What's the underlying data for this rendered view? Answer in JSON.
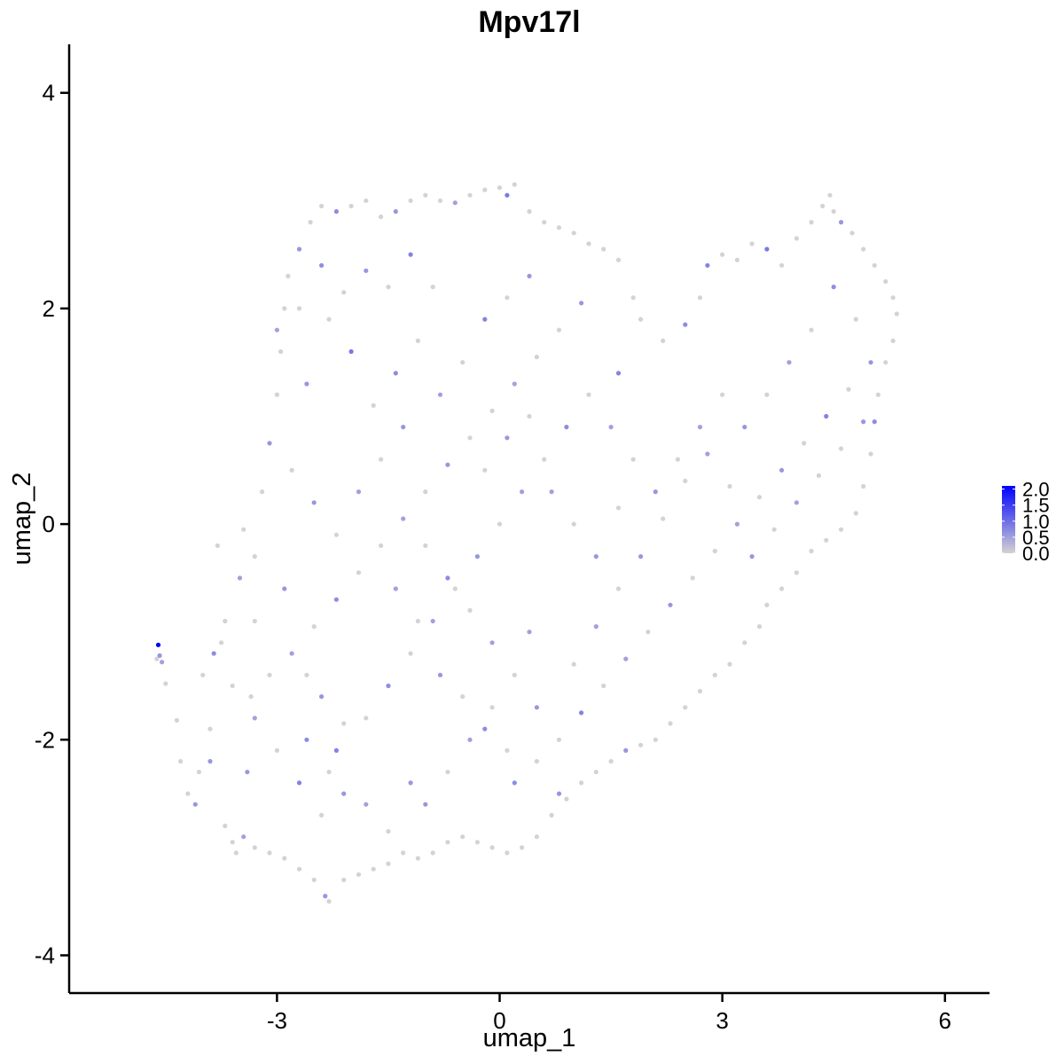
{
  "chart_data": {
    "type": "scatter",
    "title": "Mpv17l",
    "xlabel": "umap_1",
    "ylabel": "umap_2",
    "xlim": [
      -5.8,
      6.6
    ],
    "ylim": [
      -4.35,
      4.45
    ],
    "x_ticks": [
      -3,
      0,
      3,
      6
    ],
    "y_ticks": [
      -4,
      -2,
      0,
      2,
      4
    ],
    "x_tick_labels": [
      "-3",
      "0",
      "3",
      "6"
    ],
    "y_tick_labels": [
      "-4",
      "-2",
      "0",
      "2",
      "4"
    ],
    "grid": false,
    "legend": {
      "placement": "right",
      "type": "colorbar",
      "min": 0.0,
      "max": 2.1,
      "tick_values": [
        0.0,
        0.5,
        1.0,
        1.5,
        2.0
      ],
      "tick_labels": [
        "0.0",
        "0.5",
        "1.0",
        "1.5",
        "2.0"
      ],
      "low_color": "#d3d3d3",
      "high_color": "#0000ff"
    },
    "colors": {
      "low": "#d3d3d3",
      "high": "#0000ff"
    },
    "points": [
      [
        -4.6,
        -1.12,
        2.1
      ],
      [
        -4.58,
        -1.22,
        0.6
      ],
      [
        -4.62,
        -1.25,
        0
      ],
      [
        -4.55,
        -1.28,
        0.5
      ],
      [
        -4.5,
        -1.48,
        0
      ],
      [
        -4.35,
        -1.82,
        0
      ],
      [
        -4.3,
        -2.2,
        0
      ],
      [
        -4.2,
        -2.5,
        0
      ],
      [
        -4.1,
        -2.6,
        0.6
      ],
      [
        -4.05,
        -2.3,
        0
      ],
      [
        -3.9,
        -1.9,
        0
      ],
      [
        -3.85,
        -1.2,
        0.7
      ],
      [
        -3.75,
        -1.1,
        0
      ],
      [
        -3.7,
        -2.8,
        0
      ],
      [
        -3.6,
        -2.95,
        0
      ],
      [
        -3.55,
        -3.05,
        0
      ],
      [
        -3.45,
        -2.9,
        0.5
      ],
      [
        -3.4,
        -2.3,
        0.6
      ],
      [
        -3.35,
        -1.6,
        0
      ],
      [
        -3.3,
        -0.9,
        0
      ],
      [
        -3.3,
        -0.3,
        0
      ],
      [
        -3.45,
        -0.05,
        0
      ],
      [
        -3.2,
        0.3,
        0
      ],
      [
        -3.1,
        0.75,
        0.6
      ],
      [
        -3.0,
        1.2,
        0
      ],
      [
        -2.95,
        1.6,
        0
      ],
      [
        -2.9,
        2.0,
        0
      ],
      [
        -2.85,
        2.3,
        0
      ],
      [
        -2.7,
        2.55,
        0.6
      ],
      [
        -2.55,
        2.8,
        0
      ],
      [
        -2.4,
        2.95,
        0
      ],
      [
        -2.2,
        2.9,
        0.7
      ],
      [
        -2.0,
        2.95,
        0
      ],
      [
        -1.8,
        3.0,
        0
      ],
      [
        -1.6,
        2.85,
        0
      ],
      [
        -1.4,
        2.9,
        0.6
      ],
      [
        -1.2,
        3.0,
        0
      ],
      [
        -1.0,
        3.05,
        0
      ],
      [
        -0.8,
        3.0,
        0
      ],
      [
        -0.6,
        2.98,
        0.5
      ],
      [
        -0.4,
        3.05,
        0
      ],
      [
        -0.2,
        3.1,
        0
      ],
      [
        0.0,
        3.12,
        0
      ],
      [
        0.1,
        3.05,
        0.9
      ],
      [
        0.2,
        3.15,
        0
      ],
      [
        0.4,
        2.9,
        0
      ],
      [
        0.6,
        2.8,
        0
      ],
      [
        0.8,
        2.75,
        0
      ],
      [
        1.0,
        2.7,
        0
      ],
      [
        1.2,
        2.6,
        0
      ],
      [
        1.4,
        2.55,
        0
      ],
      [
        1.6,
        2.45,
        0
      ],
      [
        1.8,
        2.1,
        0
      ],
      [
        1.6,
        1.4,
        0.8
      ],
      [
        1.9,
        1.9,
        0
      ],
      [
        2.2,
        1.7,
        0
      ],
      [
        2.5,
        1.85,
        0.7
      ],
      [
        2.7,
        2.1,
        0
      ],
      [
        2.8,
        2.4,
        0.8
      ],
      [
        3.0,
        2.5,
        0
      ],
      [
        3.2,
        2.45,
        0
      ],
      [
        3.4,
        2.6,
        0
      ],
      [
        3.6,
        2.55,
        0.9
      ],
      [
        3.8,
        2.4,
        0
      ],
      [
        4.0,
        2.65,
        0
      ],
      [
        4.2,
        2.8,
        0
      ],
      [
        4.35,
        2.95,
        0
      ],
      [
        4.45,
        3.05,
        0
      ],
      [
        4.5,
        2.9,
        0
      ],
      [
        4.6,
        2.8,
        0.6
      ],
      [
        4.75,
        2.7,
        0
      ],
      [
        4.9,
        2.55,
        0
      ],
      [
        5.05,
        2.4,
        0
      ],
      [
        5.2,
        2.25,
        0
      ],
      [
        5.3,
        2.1,
        0
      ],
      [
        5.35,
        1.95,
        0
      ],
      [
        5.3,
        1.7,
        0
      ],
      [
        5.2,
        1.5,
        0
      ],
      [
        5.1,
        1.2,
        0
      ],
      [
        5.05,
        0.95,
        0.7
      ],
      [
        5.0,
        0.65,
        0
      ],
      [
        4.9,
        0.35,
        0
      ],
      [
        4.8,
        0.1,
        0
      ],
      [
        4.6,
        -0.05,
        0
      ],
      [
        4.4,
        -0.15,
        0
      ],
      [
        4.2,
        -0.25,
        0
      ],
      [
        4.0,
        -0.45,
        0
      ],
      [
        3.8,
        -0.6,
        0
      ],
      [
        3.6,
        -0.75,
        0
      ],
      [
        3.5,
        -0.95,
        0
      ],
      [
        3.3,
        -1.1,
        0
      ],
      [
        3.1,
        -1.3,
        0
      ],
      [
        2.9,
        -1.4,
        0
      ],
      [
        2.7,
        -1.55,
        0
      ],
      [
        2.5,
        -1.7,
        0
      ],
      [
        2.3,
        -1.85,
        0
      ],
      [
        2.1,
        -2.0,
        0
      ],
      [
        1.9,
        -2.05,
        0
      ],
      [
        1.7,
        -2.1,
        0.6
      ],
      [
        1.5,
        -2.2,
        0
      ],
      [
        1.3,
        -2.3,
        0
      ],
      [
        1.1,
        -2.4,
        0
      ],
      [
        0.9,
        -2.55,
        0
      ],
      [
        0.7,
        -2.7,
        0
      ],
      [
        0.5,
        -2.9,
        0
      ],
      [
        0.3,
        -3.0,
        0
      ],
      [
        0.1,
        -3.05,
        0
      ],
      [
        -0.1,
        -3.0,
        0
      ],
      [
        -0.3,
        -2.95,
        0
      ],
      [
        -0.5,
        -2.9,
        0
      ],
      [
        -0.7,
        -2.95,
        0
      ],
      [
        -0.9,
        -3.05,
        0
      ],
      [
        -1.1,
        -3.1,
        0
      ],
      [
        -1.3,
        -3.05,
        0
      ],
      [
        -1.5,
        -3.15,
        0
      ],
      [
        -1.7,
        -3.2,
        0
      ],
      [
        -1.9,
        -3.25,
        0
      ],
      [
        -2.1,
        -3.3,
        0
      ],
      [
        -2.3,
        -3.5,
        0
      ],
      [
        -2.35,
        -3.45,
        0.6
      ],
      [
        -2.5,
        -3.3,
        0
      ],
      [
        -2.7,
        -3.2,
        0
      ],
      [
        -2.9,
        -3.1,
        0
      ],
      [
        -3.1,
        -3.05,
        0
      ],
      [
        -3.3,
        -3.0,
        0
      ],
      [
        -2.2,
        -2.1,
        0.8
      ],
      [
        -2.1,
        -1.85,
        0
      ],
      [
        -2.4,
        -1.6,
        0.6
      ],
      [
        -2.6,
        -1.4,
        0
      ],
      [
        -2.8,
        -1.2,
        0.5
      ],
      [
        -2.5,
        -0.95,
        0
      ],
      [
        -2.2,
        -0.7,
        0.7
      ],
      [
        -1.9,
        -0.45,
        0
      ],
      [
        -1.6,
        -0.2,
        0
      ],
      [
        -1.3,
        0.05,
        0.5
      ],
      [
        -1.0,
        0.3,
        0
      ],
      [
        -0.7,
        0.55,
        0.6
      ],
      [
        -0.4,
        0.8,
        0
      ],
      [
        -0.1,
        1.05,
        0
      ],
      [
        0.2,
        1.3,
        0.5
      ],
      [
        0.5,
        1.55,
        0
      ],
      [
        0.8,
        1.8,
        0
      ],
      [
        1.1,
        2.05,
        0.6
      ],
      [
        -2.0,
        1.6,
        0.9
      ],
      [
        -2.3,
        1.9,
        0
      ],
      [
        -2.6,
        1.3,
        0.6
      ],
      [
        -1.7,
        1.1,
        0
      ],
      [
        -1.4,
        1.4,
        0.7
      ],
      [
        -1.1,
        1.7,
        0
      ],
      [
        -0.8,
        1.2,
        0.5
      ],
      [
        -0.5,
        1.5,
        0
      ],
      [
        -0.2,
        1.9,
        0.8
      ],
      [
        0.1,
        2.1,
        0
      ],
      [
        0.4,
        2.3,
        0.6
      ],
      [
        -0.9,
        2.2,
        0
      ],
      [
        -1.2,
        2.5,
        0.8
      ],
      [
        -1.5,
        2.2,
        0
      ],
      [
        -1.8,
        2.35,
        0.6
      ],
      [
        -2.1,
        2.15,
        0
      ],
      [
        -2.4,
        2.4,
        0.7
      ],
      [
        -2.7,
        2.0,
        0
      ],
      [
        -3.0,
        1.8,
        0.5
      ],
      [
        -2.8,
        0.5,
        0
      ],
      [
        -2.5,
        0.2,
        0.6
      ],
      [
        -2.2,
        -0.1,
        0
      ],
      [
        -1.9,
        0.3,
        0.5
      ],
      [
        -1.6,
        0.6,
        0
      ],
      [
        -1.3,
        0.9,
        0.6
      ],
      [
        -1.0,
        -0.2,
        0
      ],
      [
        -0.7,
        -0.5,
        0.7
      ],
      [
        -0.4,
        -0.8,
        0
      ],
      [
        -0.1,
        -1.1,
        0.5
      ],
      [
        0.2,
        -1.4,
        0
      ],
      [
        0.5,
        -1.7,
        0.6
      ],
      [
        0.8,
        -2.0,
        0
      ],
      [
        1.1,
        -1.75,
        0.8
      ],
      [
        1.4,
        -1.5,
        0
      ],
      [
        1.7,
        -1.25,
        0.5
      ],
      [
        2.0,
        -1.0,
        0
      ],
      [
        2.3,
        -0.75,
        0.6
      ],
      [
        2.6,
        -0.5,
        0
      ],
      [
        2.9,
        -0.25,
        0
      ],
      [
        3.2,
        0.0,
        0.5
      ],
      [
        3.5,
        0.25,
        0
      ],
      [
        3.8,
        0.5,
        0.6
      ],
      [
        4.1,
        0.75,
        0
      ],
      [
        4.4,
        1.0,
        0.8
      ],
      [
        4.7,
        1.25,
        0
      ],
      [
        5.0,
        1.5,
        0.6
      ],
      [
        4.8,
        1.9,
        0
      ],
      [
        4.5,
        2.2,
        0.7
      ],
      [
        4.2,
        1.8,
        0
      ],
      [
        3.9,
        1.5,
        0.5
      ],
      [
        3.6,
        1.2,
        0
      ],
      [
        3.3,
        0.9,
        0.6
      ],
      [
        3.0,
        1.2,
        0
      ],
      [
        2.7,
        0.9,
        0.5
      ],
      [
        2.4,
        0.6,
        0
      ],
      [
        2.1,
        0.3,
        0.6
      ],
      [
        1.8,
        0.6,
        0
      ],
      [
        1.5,
        0.9,
        0.5
      ],
      [
        1.2,
        1.2,
        0
      ],
      [
        0.9,
        0.9,
        0.7
      ],
      [
        0.6,
        0.6,
        0
      ],
      [
        0.3,
        0.3,
        0.5
      ],
      [
        0.0,
        0.0,
        0
      ],
      [
        -0.3,
        -0.3,
        0.6
      ],
      [
        -0.6,
        -0.6,
        0
      ],
      [
        -0.9,
        -0.9,
        0.5
      ],
      [
        -1.2,
        -1.2,
        0
      ],
      [
        -1.5,
        -1.5,
        0.7
      ],
      [
        -1.8,
        -1.8,
        0
      ],
      [
        -2.1,
        -2.5,
        0.6
      ],
      [
        -2.4,
        -2.7,
        0
      ],
      [
        -2.7,
        -2.4,
        0.8
      ],
      [
        -3.0,
        -2.1,
        0
      ],
      [
        -3.3,
        -1.8,
        0.5
      ],
      [
        -3.6,
        -1.5,
        0
      ],
      [
        -3.9,
        -2.2,
        0.6
      ],
      [
        -4.0,
        -1.4,
        0
      ],
      [
        -3.7,
        -0.9,
        0
      ],
      [
        -3.5,
        -0.5,
        0.5
      ],
      [
        -3.8,
        -0.2,
        0
      ],
      [
        -1.0,
        -2.6,
        0.6
      ],
      [
        -0.7,
        -2.3,
        0
      ],
      [
        -0.4,
        -2.0,
        0.5
      ],
      [
        -0.1,
        -1.7,
        0
      ],
      [
        0.2,
        -2.4,
        0.7
      ],
      [
        0.5,
        -2.2,
        0
      ],
      [
        0.8,
        -2.5,
        0.6
      ],
      [
        1.0,
        -1.3,
        0
      ],
      [
        1.3,
        -0.95,
        0.5
      ],
      [
        1.6,
        -0.6,
        0
      ],
      [
        1.9,
        -0.3,
        0.6
      ],
      [
        2.2,
        0.05,
        0
      ],
      [
        2.5,
        0.4,
        0
      ],
      [
        2.8,
        0.65,
        0.5
      ],
      [
        3.1,
        0.35,
        0
      ],
      [
        3.4,
        -0.3,
        0.6
      ],
      [
        3.7,
        -0.05,
        0
      ],
      [
        4.0,
        0.2,
        0.5
      ],
      [
        4.3,
        0.45,
        0
      ],
      [
        4.6,
        0.7,
        0
      ],
      [
        4.9,
        0.95,
        0.6
      ],
      [
        -2.9,
        -0.6,
        0.6
      ],
      [
        -3.1,
        -1.4,
        0
      ],
      [
        -2.6,
        -2.0,
        0.7
      ],
      [
        -2.3,
        -2.3,
        0
      ],
      [
        -1.8,
        -2.6,
        0.5
      ],
      [
        -1.5,
        -2.85,
        0
      ],
      [
        -1.2,
        -2.4,
        0.6
      ],
      [
        -0.2,
        0.5,
        0
      ],
      [
        0.1,
        0.8,
        0.6
      ],
      [
        0.4,
        1.0,
        0
      ],
      [
        0.7,
        0.3,
        0.5
      ],
      [
        1.0,
        0.0,
        0
      ],
      [
        1.3,
        -0.3,
        0.6
      ],
      [
        1.6,
        0.15,
        0
      ],
      [
        -1.4,
        -0.6,
        0.5
      ],
      [
        -1.1,
        -0.9,
        0
      ],
      [
        -0.8,
        -1.4,
        0.6
      ],
      [
        -0.5,
        -1.6,
        0
      ],
      [
        -0.2,
        -1.9,
        0.7
      ],
      [
        0.1,
        -2.1,
        0
      ],
      [
        0.4,
        -1.0,
        0.5
      ]
    ]
  }
}
